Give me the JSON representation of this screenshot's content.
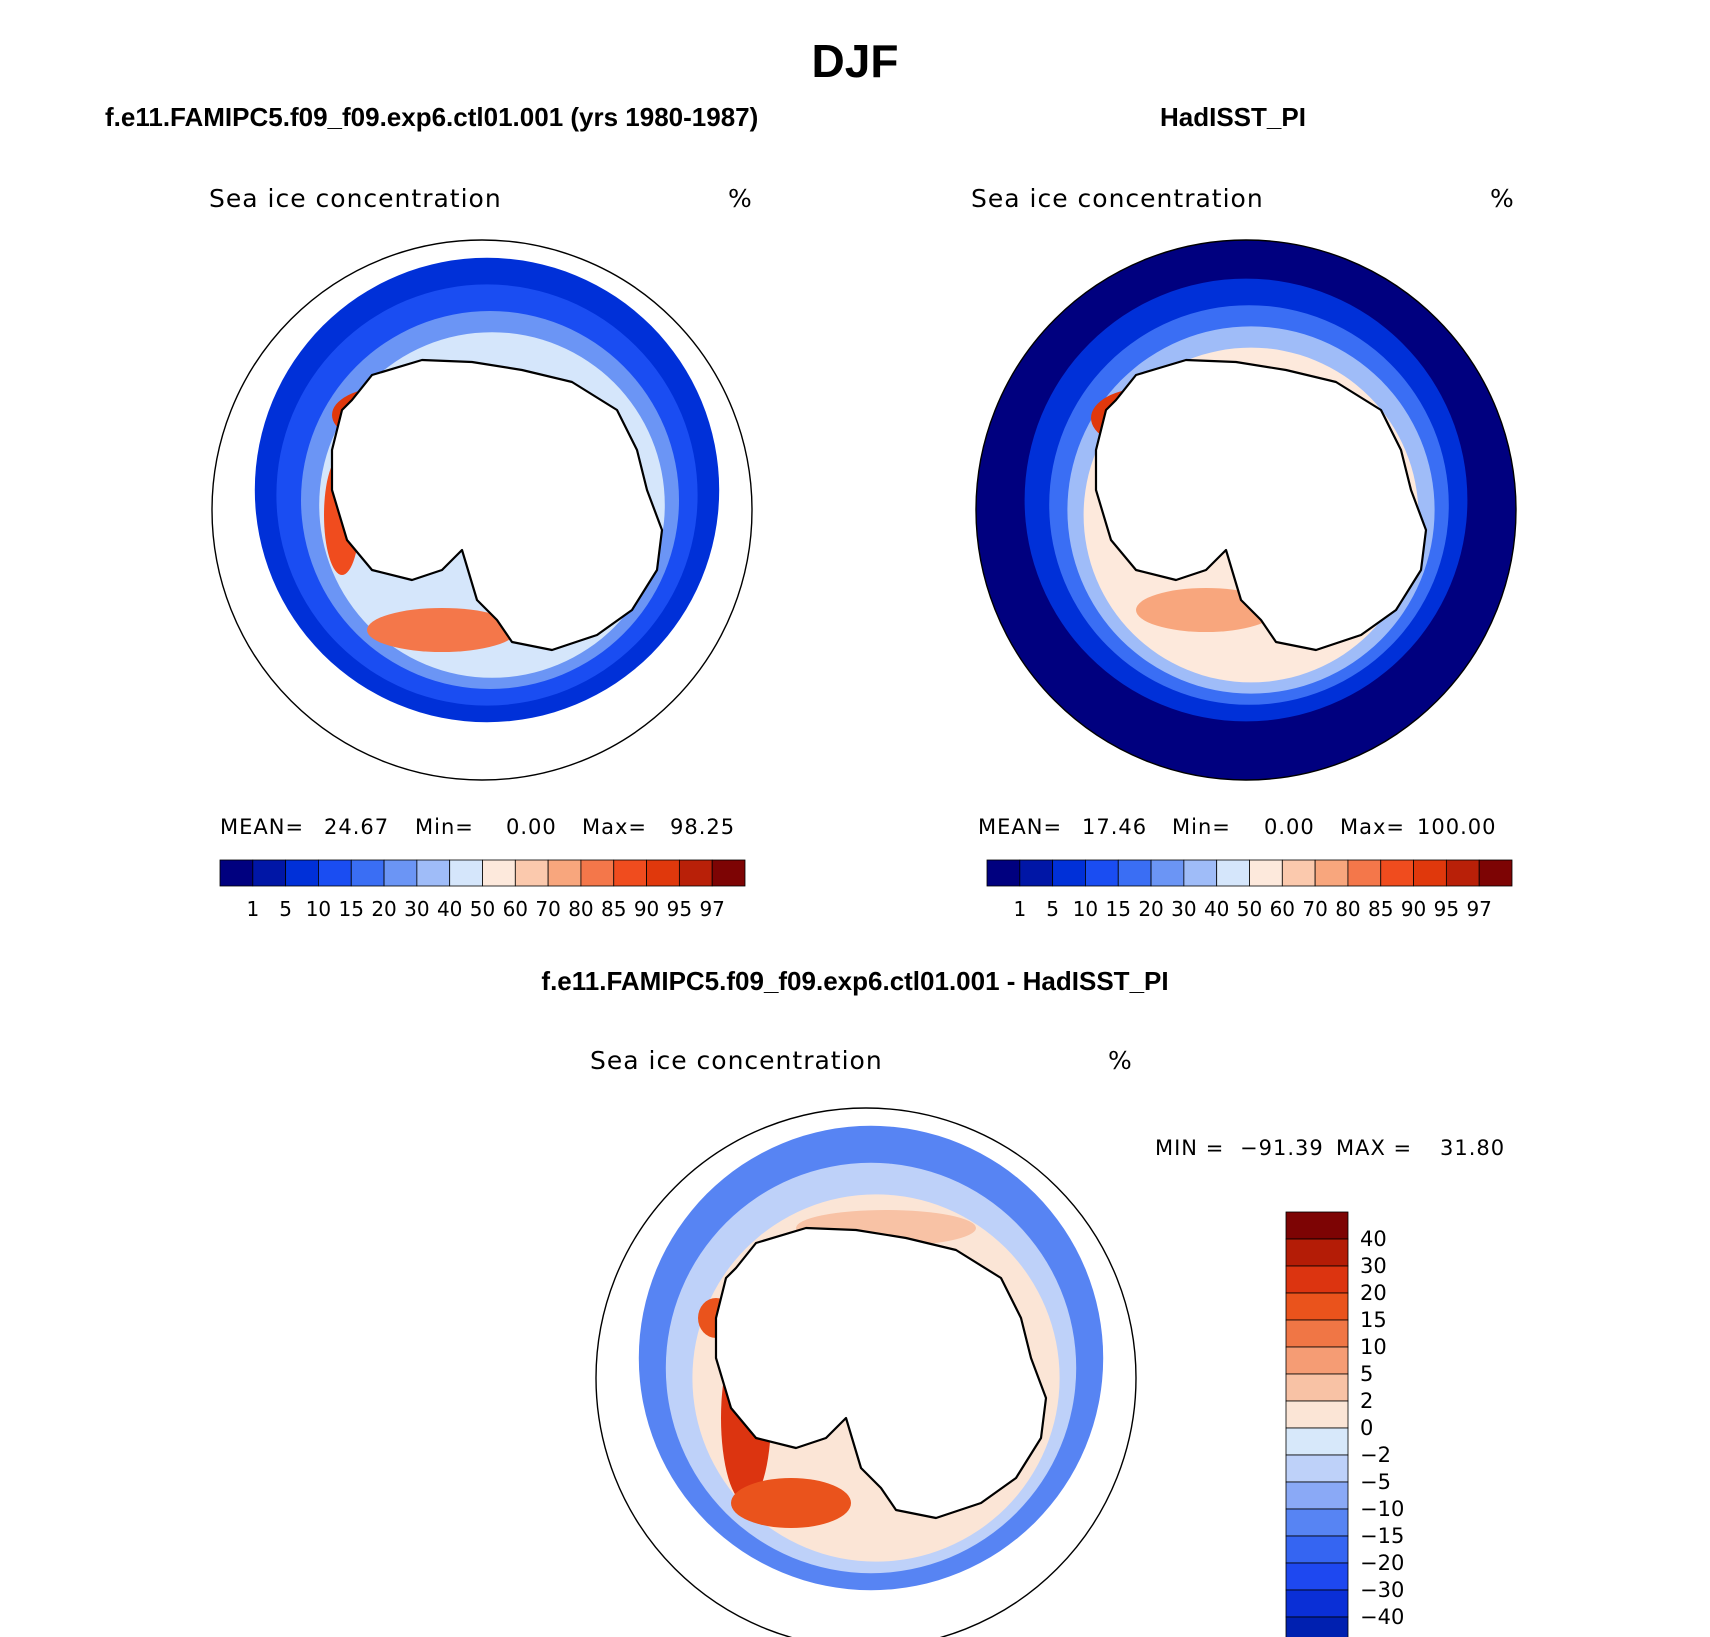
{
  "page": {
    "title": "DJF"
  },
  "colors": {
    "seq_palette": [
      "#00007f",
      "#0016a6",
      "#0030d8",
      "#1a4df2",
      "#3a6ef4",
      "#6b95f5",
      "#9fbcf8",
      "#d5e6fb",
      "#fde9dc",
      "#fbc9ad",
      "#f8a67d",
      "#f4774a",
      "#f04c1e",
      "#e0380c",
      "#b92008",
      "#7d0404"
    ],
    "diff_palette": [
      "#00117d",
      "#0020b0",
      "#0a2fd6",
      "#1e48f0",
      "#3565f2",
      "#5784f3",
      "#8aa9f6",
      "#bed1f9",
      "#d7e8fa",
      "#fbe5d6",
      "#f8c2a5",
      "#f59c74",
      "#f07645",
      "#ea531c",
      "#dc3410",
      "#b41c06",
      "#7d0404"
    ],
    "land": "#ffffff",
    "coast": "#000000"
  },
  "chart_data": [
    {
      "type": "map",
      "panel_title": "f.e11.FAMIPC5.f09_f09.exp6.ctl01.001 (yrs 1980-1987)",
      "variable_label": "Sea ice concentration",
      "units": "%",
      "stats": {
        "mean_label": "MEAN=",
        "mean": "24.67",
        "min_label": "Min=",
        "min": "0.00",
        "max_label": "Max=",
        "max": "98.25"
      },
      "colorbar_levels": [
        "1",
        "5",
        "10",
        "15",
        "20",
        "30",
        "40",
        "50",
        "60",
        "70",
        "80",
        "85",
        "90",
        "95",
        "97"
      ],
      "projection": "south-polar-stereographic"
    },
    {
      "type": "map",
      "panel_title": "HadISST_PI",
      "variable_label": "Sea ice concentration",
      "units": "%",
      "stats": {
        "mean_label": "MEAN=",
        "mean": "17.46",
        "min_label": "Min=",
        "min": "0.00",
        "max_label": "Max=",
        "max": "100.00"
      },
      "colorbar_levels": [
        "1",
        "5",
        "10",
        "15",
        "20",
        "30",
        "40",
        "50",
        "60",
        "70",
        "80",
        "85",
        "90",
        "95",
        "97"
      ],
      "projection": "south-polar-stereographic"
    },
    {
      "type": "map",
      "panel_title": "f.e11.FAMIPC5.f09_f09.exp6.ctl01.001 - HadISST_PI",
      "variable_label": "Sea ice concentration",
      "units": "%",
      "stats": {
        "min_label": "MIN =",
        "min": "−91.39",
        "max_label": "MAX =",
        "max": "31.80"
      },
      "colorbar_levels": [
        "40",
        "30",
        "20",
        "15",
        "10",
        "5",
        "2",
        "0",
        "−2",
        "−5",
        "−10",
        "−15",
        "−20",
        "−30",
        "−40"
      ],
      "colorbar_orientation": "vertical",
      "projection": "south-polar-stereographic"
    }
  ]
}
